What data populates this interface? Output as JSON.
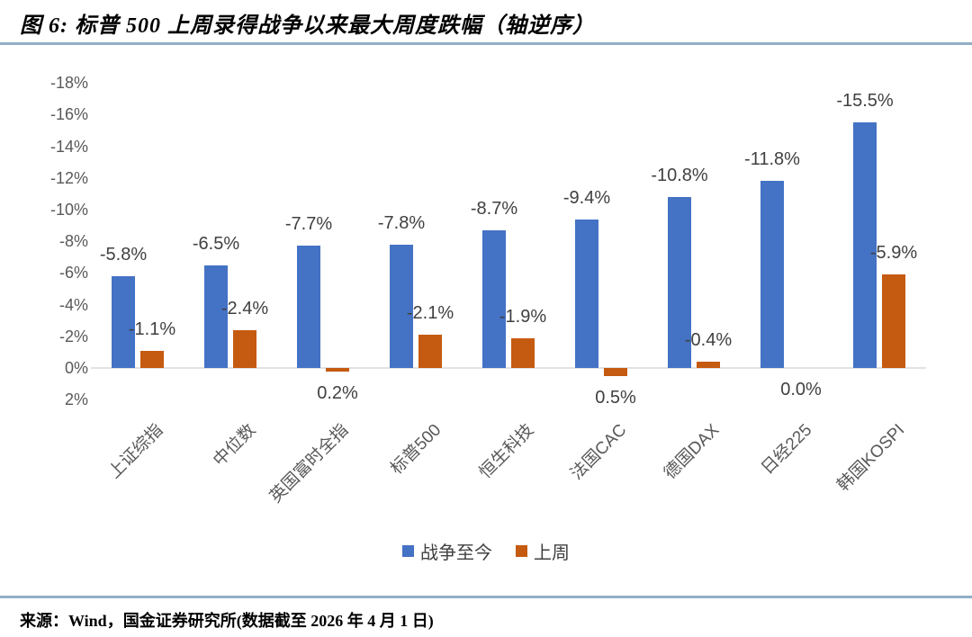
{
  "header": {
    "title": "图 6: 标普 500 上周录得战争以来最大周度跌幅（轴逆序）"
  },
  "footer": {
    "source": "来源：Wind，国金证券研究所(数据截至 2026 年 4 月 1 日)"
  },
  "style": {
    "rule_color": "#92AEC6",
    "axis_line_color": "#E2E2E2",
    "tick_color": "#595959",
    "data_label_color": "#404040",
    "category_color": "#595959"
  },
  "chart_data": {
    "type": "bar",
    "title": "图 6: 标普 500 上周录得战争以来最大周度跌幅（轴逆序）",
    "categories": [
      "上证综指",
      "中位数",
      "英国富时全指",
      "标普500",
      "恒生科技",
      "法国CAC",
      "德国DAX",
      "日经225",
      "韩国KOSPI"
    ],
    "series": [
      {
        "name": "战争至今",
        "color": "#4472C4",
        "values": [
          -5.8,
          -6.5,
          -7.7,
          -7.8,
          -8.7,
          -9.4,
          -10.8,
          -11.8,
          -15.5
        ],
        "labels": [
          "-5.8%",
          "-6.5%",
          "-7.7%",
          "-7.8%",
          "-8.7%",
          "-9.4%",
          "-10.8%",
          "-11.8%",
          "-15.5%"
        ]
      },
      {
        "name": "上周",
        "color": "#C55A11",
        "values": [
          -1.1,
          -2.4,
          0.2,
          -2.1,
          -1.9,
          0.5,
          -0.4,
          0.0,
          -5.9
        ],
        "labels": [
          "-1.1%",
          "-2.4%",
          "0.2%",
          "-2.1%",
          "-1.9%",
          "0.5%",
          "-0.4%",
          "0.0%",
          "-5.9%"
        ]
      }
    ],
    "y_axis": {
      "unit": "%",
      "ticks": [
        "-18%",
        "-16%",
        "-14%",
        "-12%",
        "-10%",
        "-8%",
        "-6%",
        "-4%",
        "-2%",
        "0%",
        "2%"
      ],
      "tick_values": [
        -18,
        -16,
        -14,
        -12,
        -10,
        -8,
        -6,
        -4,
        -2,
        0,
        2
      ],
      "min": -18,
      "max": 2,
      "inverted": true
    },
    "grid": false,
    "legend_position": "bottom",
    "legend": [
      "战争至今",
      "上周"
    ]
  }
}
